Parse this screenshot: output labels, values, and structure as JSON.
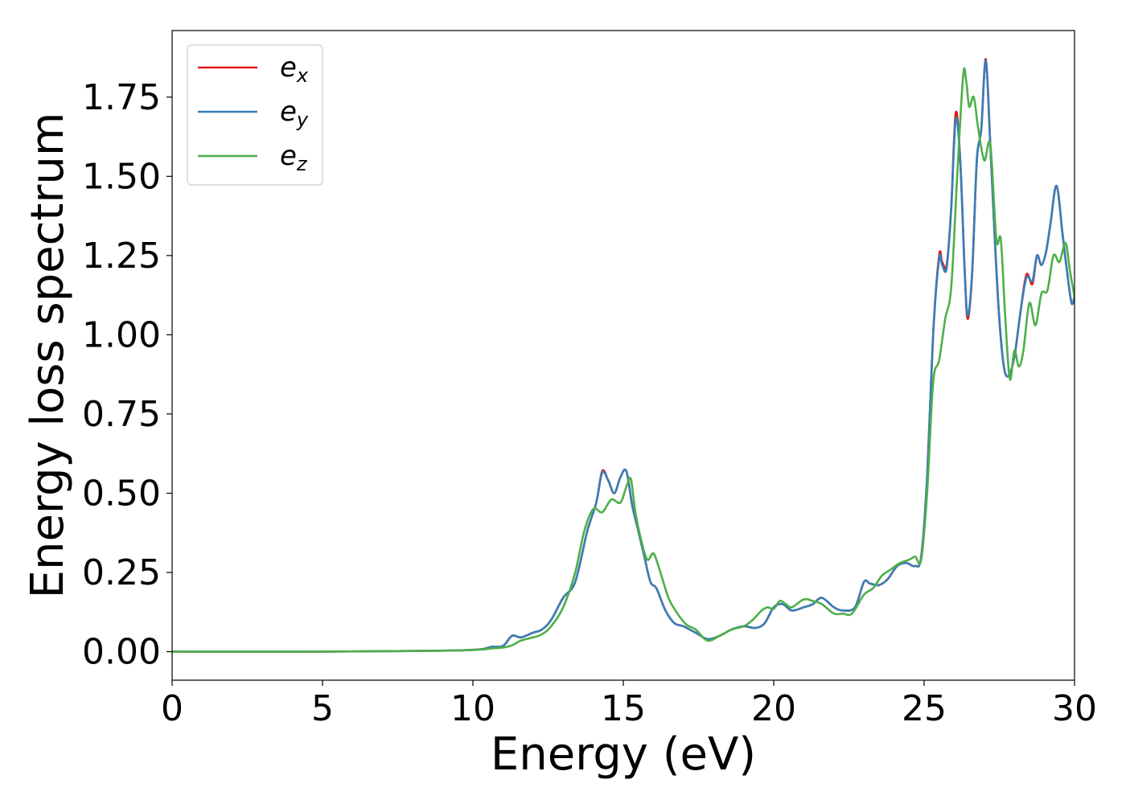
{
  "chart_data": {
    "type": "line",
    "title": "",
    "xlabel": "Energy (eV)",
    "ylabel": "Energy loss spectrum",
    "xlim": [
      0,
      30
    ],
    "ylim": [
      -0.09,
      1.96
    ],
    "xticks": [
      0,
      5,
      10,
      15,
      20,
      25,
      30
    ],
    "xtick_labels": [
      "0",
      "5",
      "10",
      "15",
      "20",
      "25",
      "30"
    ],
    "yticks": [
      0,
      0.25,
      0.5,
      0.75,
      1.0,
      1.25,
      1.5,
      1.75
    ],
    "ytick_labels": [
      "0.00",
      "0.25",
      "0.50",
      "0.75",
      "1.00",
      "1.25",
      "1.50",
      "1.75"
    ],
    "grid": false,
    "legend": {
      "position": "top-left"
    },
    "series": [
      {
        "name": "e",
        "sub": "x",
        "color": "#e41a1c",
        "x": [
          0,
          5,
          8,
          9.5,
          10.3,
          10.6,
          11.0,
          11.3,
          11.6,
          12.0,
          12.3,
          12.6,
          13.0,
          13.4,
          13.8,
          14.1,
          14.3,
          14.5,
          14.7,
          14.9,
          15.1,
          15.3,
          15.5,
          15.7,
          15.9,
          16.1,
          16.4,
          16.7,
          17.0,
          17.4,
          17.8,
          18.2,
          18.6,
          19.0,
          19.4,
          19.7,
          20.0,
          20.3,
          20.6,
          21.0,
          21.3,
          21.6,
          22.0,
          22.3,
          22.7,
          23.0,
          23.2,
          23.5,
          23.8,
          24.1,
          24.4,
          24.7,
          24.9,
          25.1,
          25.3,
          25.5,
          25.6,
          25.75,
          25.9,
          26.05,
          26.2,
          26.35,
          26.45,
          26.6,
          26.75,
          26.9,
          27.05,
          27.2,
          27.35,
          27.5,
          27.65,
          27.8,
          28.0,
          28.2,
          28.4,
          28.6,
          28.75,
          28.9,
          29.05,
          29.2,
          29.4,
          29.6,
          29.75,
          29.9,
          30
        ],
        "y": [
          0,
          0,
          0.002,
          0.004,
          0.008,
          0.015,
          0.018,
          0.05,
          0.045,
          0.06,
          0.07,
          0.1,
          0.17,
          0.22,
          0.38,
          0.47,
          0.57,
          0.54,
          0.5,
          0.55,
          0.57,
          0.46,
          0.38,
          0.3,
          0.22,
          0.2,
          0.13,
          0.09,
          0.08,
          0.06,
          0.04,
          0.05,
          0.07,
          0.08,
          0.075,
          0.09,
          0.14,
          0.15,
          0.13,
          0.14,
          0.15,
          0.17,
          0.14,
          0.13,
          0.14,
          0.22,
          0.215,
          0.21,
          0.23,
          0.27,
          0.28,
          0.27,
          0.3,
          0.55,
          1.0,
          1.25,
          1.23,
          1.22,
          1.4,
          1.7,
          1.55,
          1.2,
          1.05,
          1.2,
          1.55,
          1.65,
          1.87,
          1.6,
          1.3,
          1.05,
          0.9,
          0.87,
          0.93,
          1.07,
          1.19,
          1.16,
          1.25,
          1.22,
          1.26,
          1.35,
          1.47,
          1.32,
          1.2,
          1.1,
          1.12
        ]
      },
      {
        "name": "e",
        "sub": "y",
        "color": "#377eb8",
        "x": [
          0,
          5,
          8,
          9.5,
          10.3,
          10.6,
          11.0,
          11.3,
          11.6,
          12.0,
          12.3,
          12.6,
          13.0,
          13.4,
          13.8,
          14.1,
          14.3,
          14.5,
          14.7,
          14.9,
          15.1,
          15.3,
          15.5,
          15.7,
          15.9,
          16.1,
          16.4,
          16.7,
          17.0,
          17.4,
          17.8,
          18.2,
          18.6,
          19.0,
          19.4,
          19.7,
          20.0,
          20.3,
          20.6,
          21.0,
          21.3,
          21.6,
          22.0,
          22.3,
          22.7,
          23.0,
          23.2,
          23.5,
          23.8,
          24.1,
          24.4,
          24.7,
          24.9,
          25.1,
          25.3,
          25.5,
          25.6,
          25.75,
          25.9,
          26.05,
          26.2,
          26.35,
          26.45,
          26.6,
          26.75,
          26.9,
          27.05,
          27.2,
          27.35,
          27.5,
          27.65,
          27.8,
          28.0,
          28.2,
          28.4,
          28.6,
          28.75,
          28.9,
          29.05,
          29.2,
          29.4,
          29.6,
          29.75,
          29.9,
          30
        ],
        "y": [
          0,
          0,
          0.002,
          0.004,
          0.008,
          0.015,
          0.018,
          0.05,
          0.045,
          0.06,
          0.07,
          0.1,
          0.17,
          0.22,
          0.38,
          0.47,
          0.565,
          0.54,
          0.5,
          0.55,
          0.57,
          0.46,
          0.38,
          0.3,
          0.22,
          0.2,
          0.13,
          0.09,
          0.08,
          0.06,
          0.04,
          0.05,
          0.07,
          0.08,
          0.075,
          0.09,
          0.14,
          0.15,
          0.13,
          0.14,
          0.15,
          0.17,
          0.14,
          0.13,
          0.14,
          0.22,
          0.215,
          0.21,
          0.23,
          0.27,
          0.28,
          0.27,
          0.3,
          0.55,
          1.0,
          1.24,
          1.22,
          1.21,
          1.4,
          1.68,
          1.55,
          1.2,
          1.06,
          1.2,
          1.55,
          1.65,
          1.865,
          1.6,
          1.3,
          1.05,
          0.9,
          0.87,
          0.93,
          1.07,
          1.18,
          1.17,
          1.25,
          1.22,
          1.26,
          1.35,
          1.47,
          1.32,
          1.2,
          1.1,
          1.12
        ]
      },
      {
        "name": "e",
        "sub": "z",
        "color": "#4daf4a",
        "x": [
          0,
          5,
          8,
          9.5,
          10.3,
          10.6,
          11.0,
          11.3,
          11.6,
          12.0,
          12.3,
          12.6,
          13.0,
          13.4,
          13.7,
          14.0,
          14.3,
          14.6,
          14.9,
          15.1,
          15.25,
          15.4,
          15.6,
          15.8,
          16.0,
          16.2,
          16.5,
          16.8,
          17.1,
          17.4,
          17.8,
          18.2,
          18.6,
          19.0,
          19.3,
          19.6,
          19.8,
          20.0,
          20.2,
          20.4,
          20.6,
          21.0,
          21.3,
          21.6,
          22.0,
          22.3,
          22.6,
          23.0,
          23.3,
          23.6,
          23.9,
          24.2,
          24.5,
          24.7,
          24.9,
          25.1,
          25.3,
          25.5,
          25.7,
          25.9,
          26.1,
          26.3,
          26.4,
          26.5,
          26.65,
          26.8,
          27.0,
          27.2,
          27.4,
          27.55,
          27.7,
          27.85,
          28.0,
          28.15,
          28.3,
          28.5,
          28.7,
          28.9,
          29.1,
          29.3,
          29.5,
          29.7,
          29.85,
          30
        ],
        "y": [
          0,
          0,
          0.002,
          0.004,
          0.007,
          0.01,
          0.013,
          0.02,
          0.035,
          0.045,
          0.055,
          0.08,
          0.14,
          0.25,
          0.38,
          0.45,
          0.44,
          0.48,
          0.47,
          0.52,
          0.545,
          0.44,
          0.35,
          0.29,
          0.31,
          0.26,
          0.17,
          0.12,
          0.085,
          0.07,
          0.035,
          0.05,
          0.07,
          0.08,
          0.1,
          0.13,
          0.14,
          0.135,
          0.16,
          0.15,
          0.14,
          0.165,
          0.16,
          0.15,
          0.12,
          0.12,
          0.12,
          0.18,
          0.2,
          0.24,
          0.26,
          0.28,
          0.29,
          0.3,
          0.29,
          0.5,
          0.85,
          0.92,
          1.05,
          1.15,
          1.5,
          1.82,
          1.8,
          1.72,
          1.75,
          1.65,
          1.55,
          1.6,
          1.3,
          1.3,
          1.05,
          0.86,
          0.95,
          0.9,
          0.95,
          1.1,
          1.03,
          1.13,
          1.14,
          1.25,
          1.23,
          1.29,
          1.2,
          1.12
        ]
      }
    ]
  }
}
